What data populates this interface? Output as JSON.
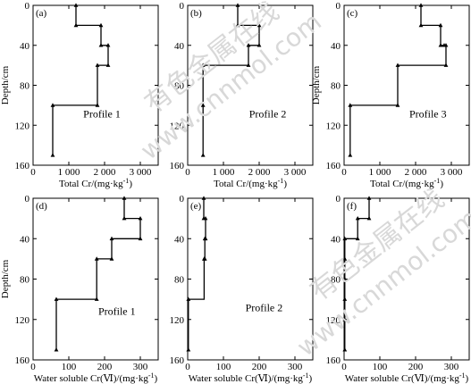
{
  "watermark": {
    "cn": "有色金属在线",
    "url": "www.cnnmol.com"
  },
  "chart_data": [
    {
      "type": "line",
      "panel_label": "(a)",
      "annotation": "Profile 1",
      "xlabel": "Total Cr/(mg·kg",
      "xlabel_sup": "-1",
      "xlabel_close": ")",
      "ylabel": "Depth/cm",
      "xlim": [
        0,
        3500
      ],
      "ylim": [
        160,
        0
      ],
      "xticks": [
        "0",
        "1 000",
        "2 000",
        "3 000"
      ],
      "xtick_values": [
        0,
        1000,
        2000,
        3000
      ],
      "yticks": [
        "0",
        "40",
        "80",
        "120",
        "160"
      ],
      "ytick_values": [
        0,
        40,
        80,
        120,
        160
      ],
      "step": true,
      "points": [
        {
          "x": 1200,
          "y": 0
        },
        {
          "x": 1200,
          "y": 20
        },
        {
          "x": 1900,
          "y": 20
        },
        {
          "x": 1900,
          "y": 40
        },
        {
          "x": 2100,
          "y": 40
        },
        {
          "x": 2100,
          "y": 60
        },
        {
          "x": 1800,
          "y": 60
        },
        {
          "x": 1800,
          "y": 100
        },
        {
          "x": 550,
          "y": 100
        },
        {
          "x": 550,
          "y": 150
        }
      ],
      "markers": [
        {
          "x": 1200,
          "y": 0
        },
        {
          "x": 1200,
          "y": 20
        },
        {
          "x": 1900,
          "y": 20
        },
        {
          "x": 1900,
          "y": 40
        },
        {
          "x": 2100,
          "y": 40
        },
        {
          "x": 2100,
          "y": 60
        },
        {
          "x": 1800,
          "y": 60
        },
        {
          "x": 1800,
          "y": 100
        },
        {
          "x": 550,
          "y": 100
        },
        {
          "x": 550,
          "y": 150
        }
      ]
    },
    {
      "type": "line",
      "panel_label": "(b)",
      "annotation": "Profile 2",
      "xlabel": "Total Cr/(mg·kg",
      "xlabel_sup": "-1",
      "xlabel_close": ")",
      "ylabel": "",
      "xlim": [
        0,
        3500
      ],
      "ylim": [
        160,
        0
      ],
      "xticks": [
        "0",
        "1 000",
        "2 000",
        "3 000"
      ],
      "xtick_values": [
        0,
        1000,
        2000,
        3000
      ],
      "yticks": [
        "0",
        "40",
        "80",
        "120",
        "160"
      ],
      "ytick_values": [
        0,
        40,
        80,
        120,
        160
      ],
      "step": true,
      "points": [
        {
          "x": 1400,
          "y": 0
        },
        {
          "x": 1400,
          "y": 20
        },
        {
          "x": 2000,
          "y": 20
        },
        {
          "x": 2000,
          "y": 40
        },
        {
          "x": 1700,
          "y": 40
        },
        {
          "x": 1700,
          "y": 60
        },
        {
          "x": 430,
          "y": 60
        },
        {
          "x": 430,
          "y": 150
        }
      ],
      "markers": [
        {
          "x": 1400,
          "y": 0
        },
        {
          "x": 1400,
          "y": 20
        },
        {
          "x": 2000,
          "y": 20
        },
        {
          "x": 2000,
          "y": 40
        },
        {
          "x": 1700,
          "y": 40
        },
        {
          "x": 1700,
          "y": 60
        },
        {
          "x": 430,
          "y": 60
        },
        {
          "x": 430,
          "y": 100
        },
        {
          "x": 430,
          "y": 150
        }
      ]
    },
    {
      "type": "line",
      "panel_label": "(c)",
      "annotation": "Profile 3",
      "xlabel": "Total Cr/(mg·kg",
      "xlabel_sup": "-1",
      "xlabel_close": ")",
      "ylabel": "Depth/cm",
      "xlim": [
        0,
        3500
      ],
      "ylim": [
        160,
        0
      ],
      "xticks": [
        "0",
        "1 000",
        "2 000",
        "3 000"
      ],
      "xtick_values": [
        0,
        1000,
        2000,
        3000
      ],
      "yticks": [
        "0",
        "40",
        "80",
        "120",
        "160"
      ],
      "ytick_values": [
        0,
        40,
        80,
        120,
        160
      ],
      "step": true,
      "points": [
        {
          "x": 2150,
          "y": 0
        },
        {
          "x": 2150,
          "y": 20
        },
        {
          "x": 2700,
          "y": 20
        },
        {
          "x": 2700,
          "y": 40
        },
        {
          "x": 2850,
          "y": 40
        },
        {
          "x": 2850,
          "y": 60
        },
        {
          "x": 1500,
          "y": 60
        },
        {
          "x": 1500,
          "y": 100
        },
        {
          "x": 170,
          "y": 100
        },
        {
          "x": 170,
          "y": 150
        }
      ],
      "markers": [
        {
          "x": 2150,
          "y": 0
        },
        {
          "x": 2150,
          "y": 20
        },
        {
          "x": 2700,
          "y": 20
        },
        {
          "x": 2700,
          "y": 40
        },
        {
          "x": 2800,
          "y": 40
        },
        {
          "x": 2850,
          "y": 40
        },
        {
          "x": 2850,
          "y": 60
        },
        {
          "x": 1500,
          "y": 60
        },
        {
          "x": 1500,
          "y": 100
        },
        {
          "x": 170,
          "y": 100
        },
        {
          "x": 170,
          "y": 150
        }
      ]
    },
    {
      "type": "line",
      "panel_label": "(d)",
      "annotation": "Profile 1",
      "xlabel": "Water soluble Cr(Ⅵ)/(mg·kg",
      "xlabel_sup": "-1",
      "xlabel_close": ")",
      "ylabel": "Depth/cm",
      "xlim": [
        0,
        350
      ],
      "ylim": [
        160,
        0
      ],
      "xticks": [
        "0",
        "100",
        "200",
        "300"
      ],
      "xtick_values": [
        0,
        100,
        200,
        300
      ],
      "yticks": [
        "0",
        "40",
        "80",
        "120",
        "160"
      ],
      "ytick_values": [
        0,
        40,
        80,
        120,
        160
      ],
      "step": true,
      "points": [
        {
          "x": 255,
          "y": 0
        },
        {
          "x": 255,
          "y": 20
        },
        {
          "x": 300,
          "y": 20
        },
        {
          "x": 300,
          "y": 40
        },
        {
          "x": 220,
          "y": 40
        },
        {
          "x": 220,
          "y": 60
        },
        {
          "x": 178,
          "y": 60
        },
        {
          "x": 178,
          "y": 100
        },
        {
          "x": 65,
          "y": 100
        },
        {
          "x": 65,
          "y": 150
        }
      ],
      "markers": [
        {
          "x": 255,
          "y": 0
        },
        {
          "x": 255,
          "y": 20
        },
        {
          "x": 300,
          "y": 20
        },
        {
          "x": 300,
          "y": 40
        },
        {
          "x": 220,
          "y": 40
        },
        {
          "x": 220,
          "y": 60
        },
        {
          "x": 178,
          "y": 60
        },
        {
          "x": 178,
          "y": 100
        },
        {
          "x": 65,
          "y": 100
        },
        {
          "x": 65,
          "y": 150
        }
      ]
    },
    {
      "type": "line",
      "panel_label": "(e)",
      "annotation": "Profile 2",
      "xlabel": "Water soluble Cr(Ⅵ)/(mg·kg",
      "xlabel_sup": "-1",
      "xlabel_close": ")",
      "ylabel": "",
      "xlim": [
        0,
        350
      ],
      "ylim": [
        160,
        0
      ],
      "xticks": [
        "0",
        "100",
        "200",
        "300"
      ],
      "xtick_values": [
        0,
        100,
        200,
        300
      ],
      "yticks": [
        "0",
        "40",
        "80",
        "120",
        "160"
      ],
      "ytick_values": [
        0,
        40,
        80,
        120,
        160
      ],
      "step": true,
      "points": [
        {
          "x": 45,
          "y": 0
        },
        {
          "x": 45,
          "y": 20
        },
        {
          "x": 50,
          "y": 20
        },
        {
          "x": 50,
          "y": 40
        },
        {
          "x": 48,
          "y": 40
        },
        {
          "x": 48,
          "y": 60
        },
        {
          "x": 46,
          "y": 60
        },
        {
          "x": 46,
          "y": 100
        },
        {
          "x": 2,
          "y": 100
        },
        {
          "x": 2,
          "y": 150
        }
      ],
      "markers": [
        {
          "x": 45,
          "y": 0
        },
        {
          "x": 45,
          "y": 20
        },
        {
          "x": 50,
          "y": 20
        },
        {
          "x": 50,
          "y": 40
        },
        {
          "x": 48,
          "y": 40
        },
        {
          "x": 48,
          "y": 60
        },
        {
          "x": 46,
          "y": 60
        },
        {
          "x": 2,
          "y": 100
        },
        {
          "x": 2,
          "y": 150
        }
      ]
    },
    {
      "type": "line",
      "panel_label": "(f)",
      "annotation": "",
      "xlabel": "Water soluble Cr(Ⅵ)/(mg·kg",
      "xlabel_sup": "-1",
      "xlabel_close": ")",
      "ylabel": "",
      "xlim": [
        0,
        350
      ],
      "ylim": [
        160,
        0
      ],
      "xticks": [
        "0",
        "100",
        "200",
        "300"
      ],
      "xtick_values": [
        0,
        100,
        200,
        300
      ],
      "yticks": [
        "0",
        "40",
        "80",
        "120",
        "160"
      ],
      "ytick_values": [
        0,
        40,
        80,
        120,
        160
      ],
      "step": true,
      "points": [
        {
          "x": 70,
          "y": 0
        },
        {
          "x": 70,
          "y": 20
        },
        {
          "x": 38,
          "y": 20
        },
        {
          "x": 38,
          "y": 40
        },
        {
          "x": 2,
          "y": 40
        },
        {
          "x": 2,
          "y": 150
        }
      ],
      "markers": [
        {
          "x": 70,
          "y": 0
        },
        {
          "x": 70,
          "y": 20
        },
        {
          "x": 38,
          "y": 20
        },
        {
          "x": 38,
          "y": 40
        },
        {
          "x": 2,
          "y": 40
        },
        {
          "x": 2,
          "y": 60
        },
        {
          "x": 2,
          "y": 80
        },
        {
          "x": 2,
          "y": 100
        },
        {
          "x": 2,
          "y": 120
        },
        {
          "x": 2,
          "y": 150
        }
      ]
    }
  ]
}
